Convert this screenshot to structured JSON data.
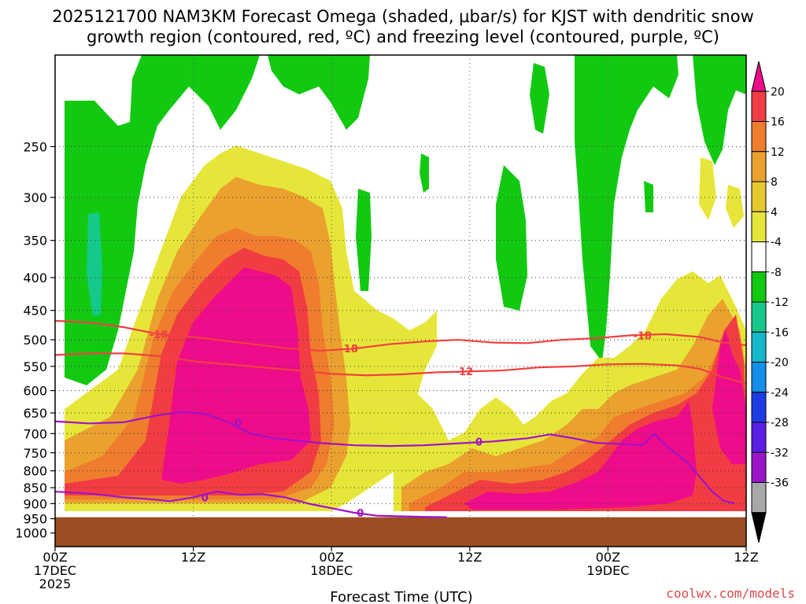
{
  "chart_data": {
    "type": "cross-section",
    "title_line1": "2025121700 NAM3KM Forecast Omega (shaded, μbar/s) for KJST with dendritic snow",
    "title_line2": "growth region (contoured, red, ºC) and freezing level (contoured, purple, ºC)",
    "xlabel": "Forecast Time (UTC)",
    "ylabel": "",
    "source": "coolwx.com/models",
    "x_hours": [
      0,
      48
    ],
    "x_ticks": [
      {
        "hour": 0,
        "line1": "00Z",
        "line2": "17DEC",
        "line3": "2025"
      },
      {
        "hour": 12,
        "line1": "12Z",
        "line2": "",
        "line3": ""
      },
      {
        "hour": 24,
        "line1": "00Z",
        "line2": "18DEC",
        "line3": ""
      },
      {
        "hour": 36,
        "line1": "12Z",
        "line2": "",
        "line3": ""
      },
      {
        "hour": 48,
        "line1": "00Z",
        "line2": "19DEC",
        "line3": ""
      },
      {
        "hour": 60,
        "line1": "12Z",
        "line2": "",
        "line3": ""
      }
    ],
    "x_range_hours": [
      0,
      60
    ],
    "y_pressure_range_hpa": [
      1050,
      180
    ],
    "y_ticks": [
      250,
      300,
      350,
      400,
      450,
      500,
      550,
      600,
      650,
      700,
      750,
      800,
      850,
      900,
      950,
      1000
    ],
    "ground_pressure_hpa": 945,
    "colorbar": {
      "levels": [
        20,
        16,
        12,
        8,
        4,
        -4,
        -8,
        -12,
        -16,
        -20,
        -24,
        -28,
        -32,
        -36
      ],
      "level_labels": [
        "20",
        "16",
        "12",
        "8",
        "4",
        "-4",
        "-8",
        "-12",
        "-16",
        "-20",
        "-24",
        "-28",
        "-32",
        "-36"
      ],
      "colors": [
        "#ee0c8a",
        "#f23c43",
        "#ef7d2d",
        "#eba12e",
        "#e6c92f",
        "#e6e63a",
        "#ffffff",
        "#12c912",
        "#15c98a",
        "#14b8c8",
        "#148ee6",
        "#1e3ce6",
        "#5a1ee6",
        "#9a14c8",
        "#a8a8a8",
        "#000000"
      ]
    },
    "omega_regions": [
      {
        "level": "rising_weak",
        "color": "#e6e63a"
      },
      {
        "level": "rising_moderate",
        "color": "#eba12e"
      },
      {
        "level": "rising_strong",
        "color": "#ef7d2d"
      },
      {
        "level": "rising_very_strong",
        "color": "#f23c43"
      },
      {
        "level": "rising_extreme",
        "color": "#ee0c8a"
      },
      {
        "level": "sinking_weak",
        "color": "#12c912"
      },
      {
        "level": "sinking_moderate",
        "color": "#15c98a"
      }
    ],
    "contours": [
      {
        "name": "dgz-upper",
        "value": -18,
        "label": "-18",
        "color": "#f04040",
        "points": [
          [
            0,
            467
          ],
          [
            3,
            470
          ],
          [
            6,
            478
          ],
          [
            9,
            490
          ],
          [
            12,
            495
          ],
          [
            16,
            505
          ],
          [
            20,
            515
          ],
          [
            23,
            520
          ],
          [
            26,
            516
          ],
          [
            29,
            508
          ],
          [
            32,
            503
          ],
          [
            35,
            500
          ],
          [
            38,
            505
          ],
          [
            41,
            506
          ],
          [
            44,
            500
          ],
          [
            47,
            497
          ],
          [
            50,
            492
          ],
          [
            53,
            490
          ],
          [
            56,
            495
          ],
          [
            58,
            505
          ],
          [
            60,
            510
          ]
        ],
        "label_hours": [
          9,
          25.5,
          51
        ]
      },
      {
        "name": "dgz-lower",
        "value": -12,
        "label": "-12",
        "color": "#f04040",
        "points": [
          [
            0,
            528
          ],
          [
            3,
            525
          ],
          [
            6,
            525
          ],
          [
            9,
            530
          ],
          [
            12,
            540
          ],
          [
            15,
            546
          ],
          [
            18,
            552
          ],
          [
            21,
            558
          ],
          [
            24,
            565
          ],
          [
            27,
            568
          ],
          [
            30,
            566
          ],
          [
            33,
            562
          ],
          [
            36,
            560
          ],
          [
            39,
            558
          ],
          [
            42,
            552
          ],
          [
            45,
            550
          ],
          [
            48,
            546
          ],
          [
            51,
            545
          ],
          [
            54,
            548
          ],
          [
            56,
            555
          ],
          [
            58,
            572
          ],
          [
            60,
            585
          ]
        ],
        "label_hours": [
          35.5
        ]
      },
      {
        "name": "freezing-level",
        "value": 0,
        "label": "0",
        "color": "#a012c8",
        "points": [
          [
            0,
            670
          ],
          [
            3,
            675
          ],
          [
            6,
            672
          ],
          [
            9,
            655
          ],
          [
            11,
            648
          ],
          [
            13,
            652
          ],
          [
            15,
            672
          ],
          [
            17,
            700
          ],
          [
            19,
            712
          ],
          [
            21,
            718
          ],
          [
            23,
            724
          ],
          [
            26,
            730
          ],
          [
            29,
            732
          ],
          [
            32,
            730
          ],
          [
            35,
            725
          ],
          [
            38,
            720
          ],
          [
            41,
            712
          ],
          [
            43,
            702
          ],
          [
            45,
            712
          ],
          [
            47,
            724
          ],
          [
            49,
            726
          ],
          [
            51,
            730
          ],
          [
            52,
            700
          ],
          [
            53,
            730
          ],
          [
            55,
            780
          ],
          [
            57,
            860
          ],
          [
            58,
            890
          ],
          [
            59,
            900
          ]
        ],
        "label_hours": [
          15.9,
          36.8
        ]
      },
      {
        "name": "freezing-level-low",
        "value": 0,
        "label": "0",
        "color": "#a012c8",
        "points": [
          [
            0,
            862
          ],
          [
            3,
            868
          ],
          [
            6,
            880
          ],
          [
            8,
            885
          ],
          [
            10,
            892
          ],
          [
            12,
            880
          ],
          [
            14,
            862
          ],
          [
            16,
            872
          ],
          [
            18,
            870
          ],
          [
            20,
            880
          ],
          [
            22,
            900
          ],
          [
            24,
            915
          ],
          [
            26,
            930
          ],
          [
            28,
            940
          ],
          [
            30,
            942
          ],
          [
            32,
            944
          ],
          [
            34,
            945
          ]
        ],
        "label_hours": [
          26.5,
          13
        ]
      }
    ]
  }
}
